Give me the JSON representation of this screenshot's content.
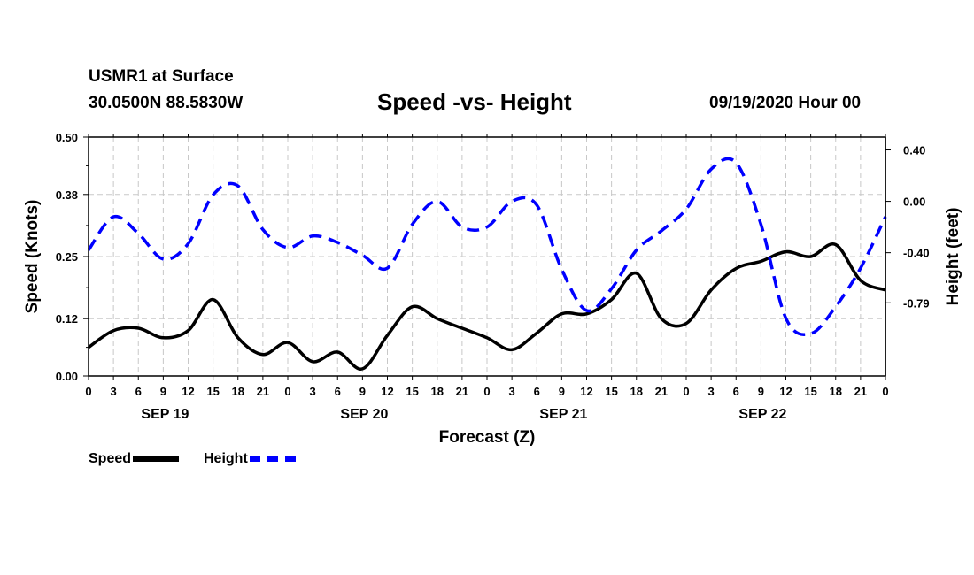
{
  "header": {
    "station": "USMR1 at Surface",
    "coords": "30.0500N 88.5830W",
    "title": "Speed -vs- Height",
    "datetime": "09/19/2020 Hour 00"
  },
  "chart_data": {
    "type": "line",
    "title": "Speed -vs- Height",
    "xlabel": "Forecast (Z)",
    "ylabel_left": "Speed (Knots)",
    "ylabel_right": "Height (feet)",
    "x_hours": [
      0,
      3,
      6,
      9,
      12,
      15,
      18,
      21,
      24,
      27,
      30,
      33,
      36,
      39,
      42,
      45,
      48,
      51,
      54,
      57,
      60,
      63,
      66,
      69,
      72,
      75,
      78,
      81,
      84,
      87,
      90,
      93,
      96
    ],
    "x_tick_labels": [
      "0",
      "3",
      "6",
      "9",
      "12",
      "15",
      "18",
      "21",
      "0",
      "3",
      "6",
      "9",
      "12",
      "15",
      "18",
      "21",
      "0",
      "3",
      "6",
      "9",
      "12",
      "15",
      "18",
      "21",
      "0",
      "3",
      "6",
      "9",
      "12",
      "15",
      "18",
      "21",
      "0"
    ],
    "date_labels": [
      {
        "label": "SEP 19",
        "hour": 9
      },
      {
        "label": "SEP 20",
        "hour": 33
      },
      {
        "label": "SEP 21",
        "hour": 57
      },
      {
        "label": "SEP 22",
        "hour": 81
      }
    ],
    "xlim": [
      0,
      96
    ],
    "ylim_left": [
      0,
      0.5
    ],
    "ylim_right": [
      -1.36,
      0.5
    ],
    "y_left_ticks": [
      0.0,
      0.12,
      0.25,
      0.38,
      0.5
    ],
    "y_left_tick_labels": [
      "0.00",
      "0.12",
      "0.25",
      "0.38",
      "0.50"
    ],
    "y_right_ticks": [
      0.4,
      0.0,
      -0.4,
      -0.79
    ],
    "y_right_tick_labels": [
      "0.40",
      "0.00",
      "-0.40",
      "-0.79"
    ],
    "grid": true,
    "legend_position": "bottom-left",
    "series": [
      {
        "name": "Speed",
        "axis": "left",
        "color": "#000000",
        "style": "solid",
        "hours": [
          0,
          3,
          6,
          9,
          12,
          15,
          18,
          21,
          24,
          27,
          30,
          33,
          36,
          39,
          42,
          45,
          48,
          51,
          54,
          57,
          60,
          63,
          66,
          69,
          72,
          75,
          78,
          81,
          84,
          87,
          90,
          93,
          96
        ],
        "values": [
          0.06,
          0.095,
          0.1,
          0.08,
          0.095,
          0.16,
          0.08,
          0.045,
          0.07,
          0.03,
          0.05,
          0.015,
          0.085,
          0.145,
          0.12,
          0.1,
          0.08,
          0.055,
          0.09,
          0.13,
          0.13,
          0.16,
          0.215,
          0.12,
          0.11,
          0.18,
          0.225,
          0.24,
          0.26,
          0.25,
          0.275,
          0.2,
          0.18
        ]
      },
      {
        "name": "Height",
        "axis": "right",
        "color": "#0000ff",
        "style": "dashed",
        "hours": [
          0,
          3,
          6,
          9,
          12,
          15,
          18,
          21,
          24,
          27,
          30,
          33,
          36,
          39,
          42,
          45,
          48,
          51,
          54,
          57,
          60,
          63,
          66,
          69,
          72,
          75,
          78,
          81,
          84,
          87,
          90,
          93,
          96
        ],
        "values": [
          -0.38,
          -0.12,
          -0.25,
          -0.45,
          -0.33,
          0.05,
          0.12,
          -0.22,
          -0.36,
          -0.27,
          -0.32,
          -0.42,
          -0.52,
          -0.18,
          0.0,
          -0.2,
          -0.2,
          0.0,
          -0.03,
          -0.53,
          -0.85,
          -0.68,
          -0.38,
          -0.23,
          -0.06,
          0.25,
          0.3,
          -0.18,
          -0.91,
          -1.03,
          -0.82,
          -0.52,
          -0.12
        ]
      }
    ]
  },
  "legend": {
    "speed_label": "Speed",
    "height_label": "Height"
  }
}
